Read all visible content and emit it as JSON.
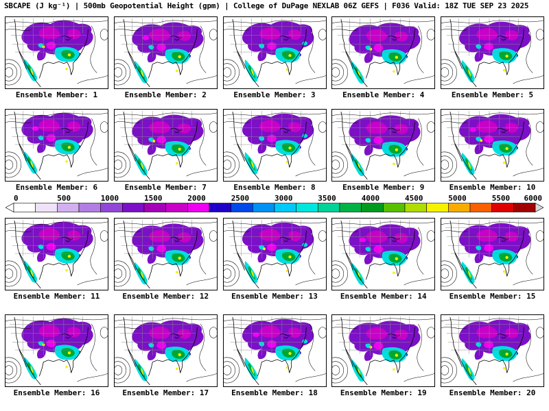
{
  "title": "SBCAPE (J kg⁻¹) | 500mb Geopotential Height (gpm) | College of DuPage NEXLAB 06Z GEFS | F036 Valid: 18Z TUE SEP 23 2025",
  "panel_labels": [
    "Ensemble Member: 1",
    "Ensemble Member: 2",
    "Ensemble Member: 3",
    "Ensemble Member: 4",
    "Ensemble Member: 5",
    "Ensemble Member: 6",
    "Ensemble Member: 7",
    "Ensemble Member: 8",
    "Ensemble Member: 9",
    "Ensemble Member: 10",
    "Ensemble Member: 11",
    "Ensemble Member: 12",
    "Ensemble Member: 13",
    "Ensemble Member: 14",
    "Ensemble Member: 15",
    "Ensemble Member: 16",
    "Ensemble Member: 17",
    "Ensemble Member: 18",
    "Ensemble Member: 19",
    "Ensemble Member: 20"
  ],
  "colorbar": {
    "ticks": [
      "0",
      "500",
      "1000",
      "1500",
      "2000",
      "2500",
      "3000",
      "3500",
      "4000",
      "4500",
      "5000",
      "5500",
      "6000"
    ],
    "segment_colors": [
      "#FFFFFF",
      "#EEE2F8",
      "#D2B0F0",
      "#B27EE4",
      "#9248D6",
      "#7C10C6",
      "#A400B8",
      "#C800C8",
      "#F000F0",
      "#2000C8",
      "#0048E8",
      "#0090F4",
      "#00C8F8",
      "#00E6DE",
      "#00D298",
      "#00B246",
      "#009A1E",
      "#58C000",
      "#B0DC00",
      "#F6F200",
      "#F8AC00",
      "#F86000",
      "#E00000",
      "#A00000"
    ],
    "underflow_arrow_color": "#FFFFFF",
    "overflow_arrow_color": "#D8D8D8"
  },
  "map_palette": {
    "cape_purple": "#7C10C6",
    "cape_magenta": "#C800C8",
    "cape_magenta_bright": "#F000F0",
    "cape_blue": "#2000C8",
    "cape_cyan": "#00DEE0",
    "cape_green": "#00A830",
    "cape_yellow": "#F4F000",
    "state_border_gray": "#8A8A8A",
    "contour_black": "#000000"
  }
}
